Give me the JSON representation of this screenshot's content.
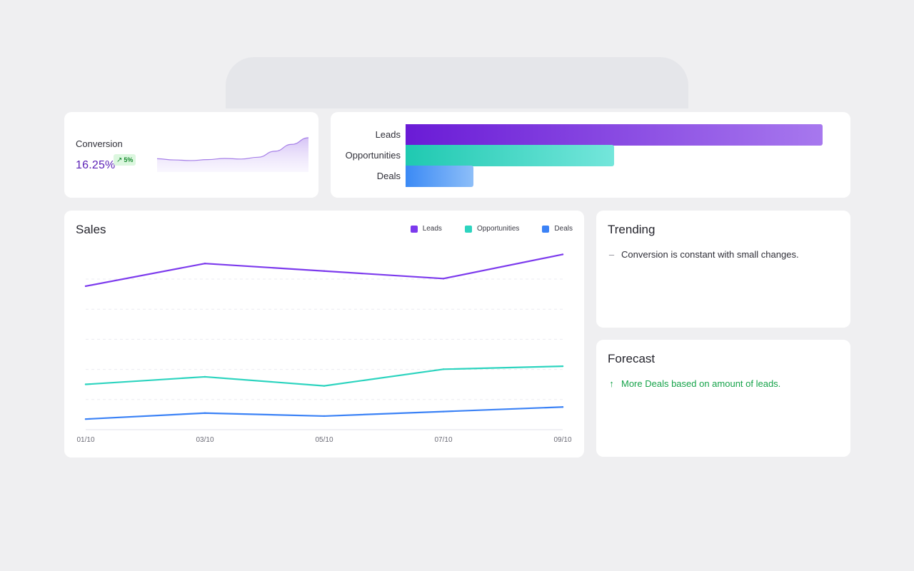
{
  "conversion": {
    "label": "Conversion",
    "value": "16.25%",
    "change": "5%",
    "change_icon": "arrow-up-right-icon",
    "sparkline": [
      0.3,
      0.26,
      0.24,
      0.27,
      0.31,
      0.29,
      0.35,
      0.55,
      0.78,
      1.0
    ],
    "accent_color": "#5b21b6",
    "badge_color": "#168a2e"
  },
  "funnel": {
    "stages": [
      {
        "label": "Leads",
        "value": 1.0,
        "color_from": "#6a1bd6",
        "color_to": "#a778ee"
      },
      {
        "label": "Opportunities",
        "value": 0.5,
        "color_from": "#1fc9b1",
        "color_to": "#74e6db"
      },
      {
        "label": "Deals",
        "value": 0.163,
        "color_from": "#3b8af5",
        "color_to": "#8dbef8"
      }
    ]
  },
  "sales": {
    "title": "Sales"
  },
  "chart_data": {
    "type": "line",
    "x": [
      "01/10",
      "03/10",
      "05/10",
      "07/10",
      "09/10"
    ],
    "series": [
      {
        "name": "Leads",
        "color": "#7c3aed",
        "values": [
          95,
          110,
          105,
          100,
          116
        ]
      },
      {
        "name": "Opportunities",
        "color": "#2dd4bf",
        "values": [
          30,
          35,
          29,
          40,
          42
        ]
      },
      {
        "name": "Deals",
        "color": "#3b82f6",
        "values": [
          7,
          11,
          9,
          12,
          15
        ]
      }
    ],
    "ylim": [
      0,
      120
    ],
    "grid": true,
    "legend": "top-right"
  },
  "trending": {
    "title": "Trending",
    "icon": "dash-icon",
    "text": "Conversion is constant with small changes."
  },
  "forecast": {
    "title": "Forecast",
    "icon": "arrow-up-icon",
    "text": "More Deals based on amount of leads.",
    "color": "#16a34a"
  }
}
